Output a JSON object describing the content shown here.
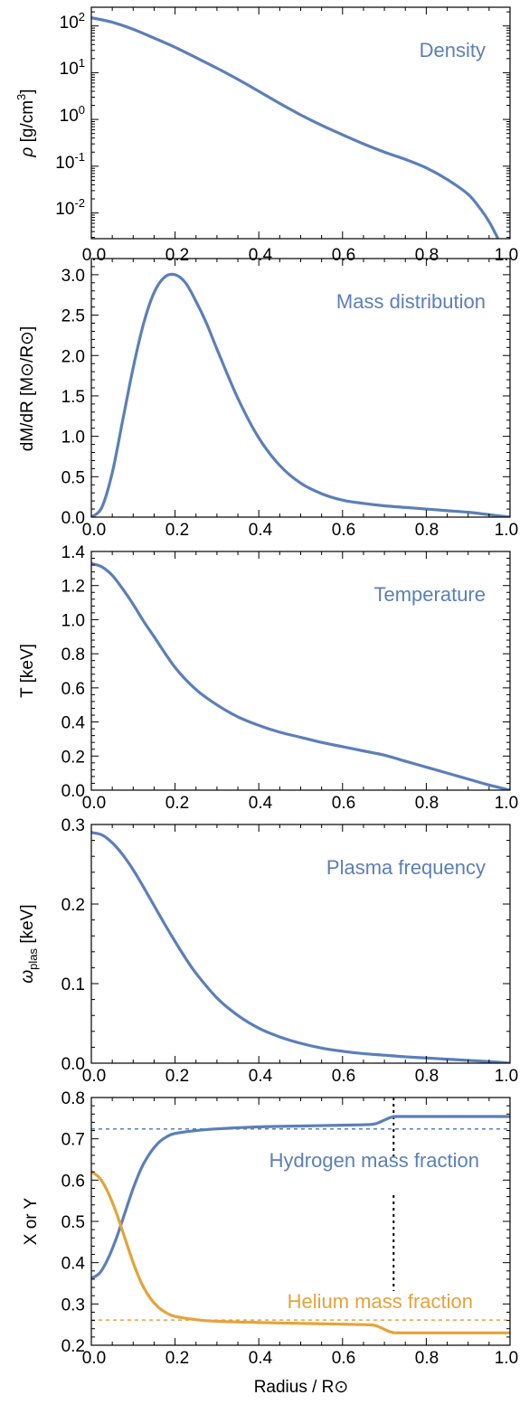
{
  "colors": {
    "blue": "#5b7fb8",
    "orange": "#e5a33b",
    "frame": "#000000"
  },
  "chart_data": [
    {
      "type": "line",
      "annotation": "Density",
      "ylabel_main": "ρ",
      "ylabel_unit": "g/cm",
      "ylabel_sup": "3",
      "yscale": "log",
      "ylim_log10": [
        -2.55,
        2.4
      ],
      "xlim": [
        0,
        1
      ],
      "x_ticks": [
        "0.0",
        "0.2",
        "0.4",
        "0.6",
        "0.8",
        "1.0"
      ],
      "y_ticks": [
        {
          "base": "10",
          "exp": "2"
        },
        {
          "base": "10",
          "exp": "1"
        },
        {
          "base": "10",
          "exp": "0"
        },
        {
          "base": "10",
          "exp": "-1"
        },
        {
          "base": "10",
          "exp": "-2"
        }
      ],
      "series": [
        {
          "color": "blue",
          "x": [
            0,
            0.05,
            0.1,
            0.15,
            0.2,
            0.25,
            0.3,
            0.35,
            0.4,
            0.45,
            0.5,
            0.55,
            0.6,
            0.65,
            0.7,
            0.75,
            0.8,
            0.85,
            0.9,
            0.93,
            0.95,
            0.97
          ],
          "y": [
            150,
            120,
            85,
            55,
            35,
            21,
            12.5,
            7.2,
            4.0,
            2.2,
            1.25,
            0.75,
            0.47,
            0.3,
            0.2,
            0.14,
            0.092,
            0.052,
            0.025,
            0.012,
            0.0065,
            0.003
          ]
        }
      ]
    },
    {
      "type": "line",
      "annotation": "Mass distribution",
      "ylabel_main": "dM/dR",
      "ylabel_unit": "M⊙/R⊙",
      "ylim": [
        0,
        3.2
      ],
      "xlim": [
        0,
        1
      ],
      "x_ticks": [
        "0.0",
        "0.2",
        "0.4",
        "0.6",
        "0.8",
        "1.0"
      ],
      "y_ticks": [
        "0.0",
        "0.5",
        "1.0",
        "1.5",
        "2.0",
        "2.5",
        "3.0"
      ],
      "y_tick_values": [
        0,
        0.5,
        1.0,
        1.5,
        2.0,
        2.5,
        3.0
      ],
      "series": [
        {
          "color": "blue",
          "x": [
            0,
            0.025,
            0.05,
            0.075,
            0.1,
            0.125,
            0.15,
            0.175,
            0.2,
            0.225,
            0.25,
            0.275,
            0.3,
            0.35,
            0.4,
            0.45,
            0.5,
            0.55,
            0.6,
            0.65,
            0.7,
            0.75,
            0.8,
            0.85,
            0.9,
            0.95,
            1.0
          ],
          "y": [
            0,
            0.12,
            0.55,
            1.2,
            1.85,
            2.4,
            2.78,
            2.97,
            3.0,
            2.9,
            2.67,
            2.4,
            2.08,
            1.47,
            0.98,
            0.64,
            0.42,
            0.29,
            0.21,
            0.17,
            0.14,
            0.12,
            0.1,
            0.08,
            0.06,
            0.03,
            0.0
          ]
        }
      ]
    },
    {
      "type": "line",
      "annotation": "Temperature",
      "ylabel_main": "T",
      "ylabel_unit": "keV",
      "ylim": [
        0,
        1.4
      ],
      "xlim": [
        0,
        1
      ],
      "x_ticks": [
        "0.0",
        "0.2",
        "0.4",
        "0.6",
        "0.8",
        "1.0"
      ],
      "y_ticks": [
        "0.0",
        "0.2",
        "0.4",
        "0.6",
        "0.8",
        "1.0",
        "1.2",
        "1.4"
      ],
      "y_tick_values": [
        0,
        0.2,
        0.4,
        0.6,
        0.8,
        1.0,
        1.2,
        1.4
      ],
      "series": [
        {
          "color": "blue",
          "x": [
            0,
            0.025,
            0.05,
            0.075,
            0.1,
            0.125,
            0.15,
            0.2,
            0.25,
            0.3,
            0.35,
            0.4,
            0.45,
            0.5,
            0.55,
            0.6,
            0.65,
            0.7,
            0.75,
            0.8,
            0.85,
            0.9,
            0.95,
            1.0
          ],
          "y": [
            1.33,
            1.31,
            1.26,
            1.18,
            1.09,
            0.99,
            0.9,
            0.72,
            0.59,
            0.5,
            0.43,
            0.38,
            0.34,
            0.31,
            0.28,
            0.255,
            0.23,
            0.205,
            0.17,
            0.135,
            0.1,
            0.065,
            0.03,
            0.0
          ]
        }
      ]
    },
    {
      "type": "line",
      "annotation": "Plasma frequency",
      "ylabel_main": "ω",
      "ylabel_sub": "plas",
      "ylabel_unit": "keV",
      "ylim": [
        0,
        0.3
      ],
      "xlim": [
        0,
        1
      ],
      "x_ticks": [
        "0.0",
        "0.2",
        "0.4",
        "0.6",
        "0.8",
        "1.0"
      ],
      "y_ticks": [
        "0.0",
        "0.1",
        "0.2",
        "0.3"
      ],
      "y_tick_values": [
        0,
        0.1,
        0.2,
        0.3
      ],
      "series": [
        {
          "color": "blue",
          "x": [
            0,
            0.025,
            0.05,
            0.075,
            0.1,
            0.125,
            0.15,
            0.175,
            0.2,
            0.225,
            0.25,
            0.3,
            0.35,
            0.4,
            0.45,
            0.5,
            0.55,
            0.6,
            0.65,
            0.7,
            0.75,
            0.8,
            0.85,
            0.9,
            0.95,
            1.0
          ],
          "y": [
            0.29,
            0.287,
            0.277,
            0.262,
            0.243,
            0.221,
            0.198,
            0.175,
            0.153,
            0.132,
            0.113,
            0.082,
            0.06,
            0.044,
            0.033,
            0.025,
            0.019,
            0.015,
            0.012,
            0.01,
            0.008,
            0.0065,
            0.005,
            0.0035,
            0.002,
            0.0
          ]
        }
      ]
    },
    {
      "type": "line",
      "annotation_h": "Hydrogen mass fraction",
      "annotation_he": "Helium mass fraction",
      "ylabel_main": "X or Y",
      "xlabel": "Radius / R⊙",
      "ylim": [
        0.2,
        0.8
      ],
      "xlim": [
        0,
        1
      ],
      "x_ticks": [
        "0.0",
        "0.2",
        "0.4",
        "0.6",
        "0.8",
        "1.0"
      ],
      "y_ticks": [
        "0.2",
        "0.3",
        "0.4",
        "0.5",
        "0.6",
        "0.7",
        "0.8"
      ],
      "y_tick_values": [
        0.2,
        0.3,
        0.4,
        0.5,
        0.6,
        0.7,
        0.8
      ],
      "hlines": [
        {
          "y": 0.724,
          "color": "blue"
        },
        {
          "y": 0.261,
          "color": "orange"
        }
      ],
      "vline_x": 0.722,
      "series": [
        {
          "color": "blue",
          "x": [
            0,
            0.02,
            0.04,
            0.06,
            0.08,
            0.1,
            0.12,
            0.14,
            0.16,
            0.18,
            0.2,
            0.25,
            0.3,
            0.4,
            0.5,
            0.6,
            0.67,
            0.69,
            0.71,
            0.72,
            0.73,
            0.8,
            0.9,
            1.0
          ],
          "y": [
            0.362,
            0.375,
            0.41,
            0.46,
            0.52,
            0.58,
            0.63,
            0.665,
            0.69,
            0.705,
            0.713,
            0.72,
            0.724,
            0.729,
            0.731,
            0.733,
            0.735,
            0.741,
            0.75,
            0.753,
            0.754,
            0.754,
            0.754,
            0.754
          ]
        },
        {
          "color": "orange",
          "x": [
            0,
            0.02,
            0.04,
            0.06,
            0.08,
            0.1,
            0.12,
            0.14,
            0.16,
            0.18,
            0.2,
            0.25,
            0.3,
            0.4,
            0.5,
            0.6,
            0.67,
            0.69,
            0.71,
            0.72,
            0.73,
            0.8,
            0.9,
            1.0
          ],
          "y": [
            0.62,
            0.605,
            0.57,
            0.52,
            0.46,
            0.4,
            0.35,
            0.315,
            0.292,
            0.278,
            0.27,
            0.262,
            0.258,
            0.255,
            0.253,
            0.251,
            0.249,
            0.243,
            0.234,
            0.231,
            0.23,
            0.23,
            0.23,
            0.23
          ]
        }
      ]
    }
  ]
}
